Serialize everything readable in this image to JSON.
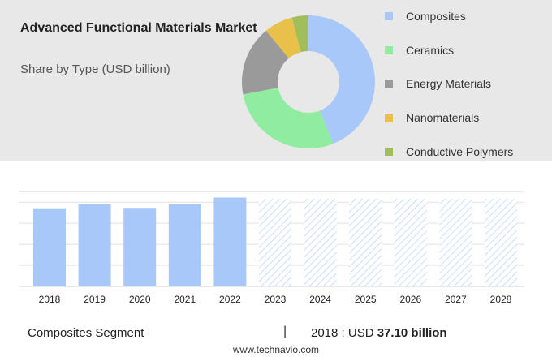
{
  "header": {
    "title": "Advanced Functional Materials Market",
    "subtitle": "Share by Type (USD billion)"
  },
  "colors": {
    "composites": "#a8c8fa",
    "ceramics": "#90eda0",
    "energy_materials": "#9a9a9a",
    "nanomaterials": "#e8c04a",
    "conductive_polymers": "#a0bf5a",
    "bar_fill": "#a8c8fa",
    "forecast_hatch": "#a8c8fa",
    "panel_background": "#e8e8e8"
  },
  "chart_data": [
    {
      "type": "pie",
      "title": "",
      "series": [
        {
          "name": "Composites",
          "value": 44
        },
        {
          "name": "Ceramics",
          "value": 28
        },
        {
          "name": "Energy Materials",
          "value": 17
        },
        {
          "name": "Nanomaterials",
          "value": 7
        },
        {
          "name": "Conductive Polymers",
          "value": 4
        }
      ],
      "legend": "right"
    },
    {
      "type": "bar",
      "title": "",
      "categories": [
        "2018",
        "2019",
        "2020",
        "2021",
        "2022",
        "2023",
        "2024",
        "2025",
        "2026",
        "2027",
        "2028"
      ],
      "values": [
        37.1,
        39.0,
        37.3,
        39.0,
        42.2,
        null,
        null,
        null,
        null,
        null,
        null
      ],
      "forecast_categories": [
        "2023",
        "2024",
        "2025",
        "2026",
        "2027",
        "2028"
      ],
      "ylim": [
        0,
        50
      ],
      "grid": true,
      "xlabel": "",
      "ylabel": ""
    }
  ],
  "footer": {
    "segment": "Composites Segment",
    "separator": "|",
    "year_label": "2018 : USD",
    "value": "37.10 billion",
    "url": "www.technavio.com"
  }
}
